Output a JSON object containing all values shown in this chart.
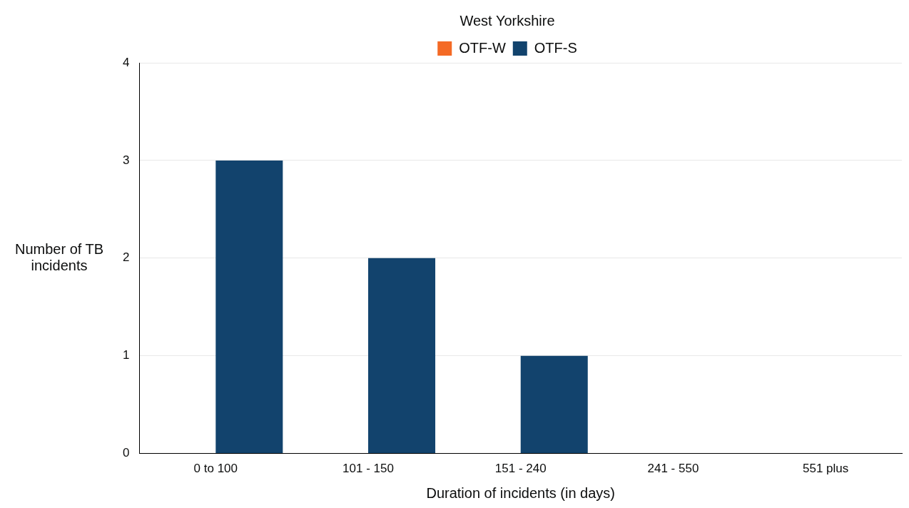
{
  "chart_data": {
    "type": "bar",
    "title": "West Yorkshire",
    "xlabel": "Duration of incidents (in days)",
    "ylabel": "Number of TB incidents",
    "categories": [
      "0 to 100",
      "101 - 150",
      "151 - 240",
      "241 - 550",
      "551 plus"
    ],
    "series": [
      {
        "name": "OTF-W",
        "color": "#f46a25",
        "values": [
          0,
          0,
          0,
          0,
          0
        ]
      },
      {
        "name": "OTF-S",
        "color": "#12436d",
        "values": [
          3,
          2,
          1,
          0,
          0
        ]
      }
    ],
    "ylim": [
      0,
      4
    ],
    "yticks": [
      0,
      1,
      2,
      3,
      4
    ],
    "grid": "y",
    "legend": "top"
  }
}
